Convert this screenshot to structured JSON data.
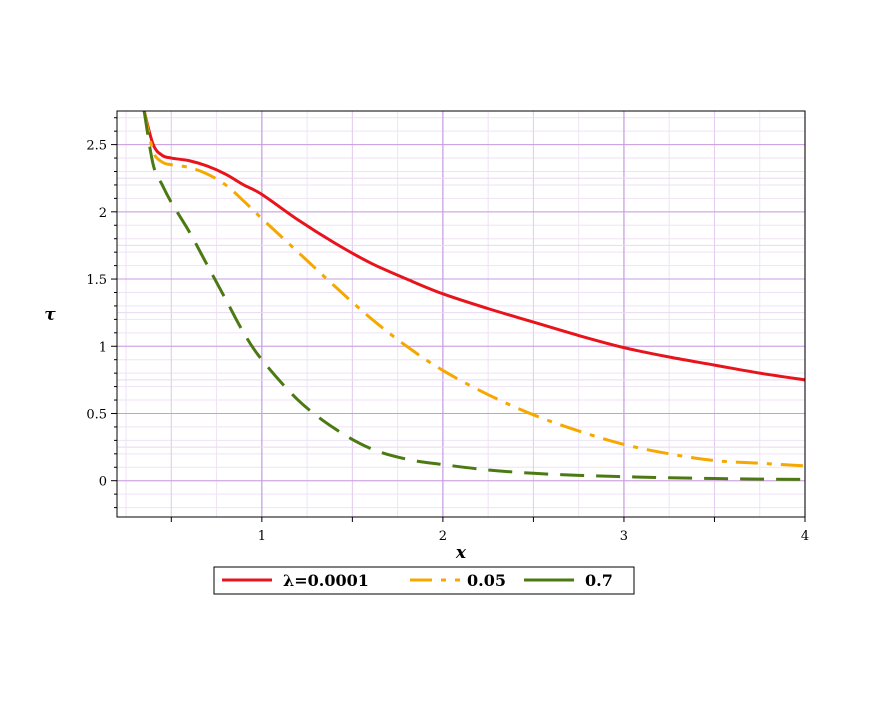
{
  "chart_data": {
    "type": "line",
    "xlabel": "x",
    "ylabel": "τ",
    "xlim": [
      0.2,
      4.0
    ],
    "ylim": [
      -0.27,
      2.75
    ],
    "x_ticks": [
      1,
      2,
      3,
      4
    ],
    "x_tick_labels": [
      "1",
      "2",
      "3",
      "4"
    ],
    "y_ticks": [
      0,
      0.5,
      1,
      1.5,
      2,
      2.5
    ],
    "y_tick_labels": [
      "0",
      "0.5",
      "1",
      "1.5",
      "2",
      "2.5"
    ],
    "grid": true,
    "legend_position": "bottom",
    "series": [
      {
        "name": "λ=0.0001",
        "color": "#e8141c",
        "dash": "solid",
        "x": [
          0.35,
          0.4,
          0.45,
          0.5,
          0.6,
          0.7,
          0.8,
          0.9,
          1.0,
          1.2,
          1.4,
          1.6,
          1.8,
          2.0,
          2.25,
          2.5,
          2.75,
          3.0,
          3.25,
          3.5,
          3.75,
          4.0
        ],
        "y": [
          2.75,
          2.5,
          2.42,
          2.4,
          2.38,
          2.34,
          2.28,
          2.2,
          2.13,
          1.94,
          1.77,
          1.62,
          1.5,
          1.39,
          1.28,
          1.18,
          1.08,
          0.99,
          0.92,
          0.86,
          0.8,
          0.75
        ]
      },
      {
        "name": "0.05",
        "color": "#f5a800",
        "dash": "dashdot",
        "x": [
          0.35,
          0.4,
          0.45,
          0.5,
          0.6,
          0.7,
          0.8,
          0.9,
          1.0,
          1.2,
          1.4,
          1.6,
          1.8,
          2.0,
          2.25,
          2.5,
          2.75,
          3.0,
          3.25,
          3.5,
          3.75,
          4.0
        ],
        "y": [
          2.75,
          2.45,
          2.37,
          2.35,
          2.33,
          2.28,
          2.2,
          2.08,
          1.95,
          1.7,
          1.45,
          1.21,
          1.0,
          0.82,
          0.64,
          0.49,
          0.37,
          0.27,
          0.2,
          0.15,
          0.13,
          0.11
        ]
      },
      {
        "name": "0.7",
        "color": "#4c7a12",
        "dash": "dashed",
        "x": [
          0.35,
          0.4,
          0.45,
          0.5,
          0.6,
          0.7,
          0.8,
          0.9,
          1.0,
          1.2,
          1.4,
          1.6,
          1.8,
          2.0,
          2.25,
          2.5,
          2.75,
          3.0,
          3.25,
          3.5,
          3.75,
          4.0
        ],
        "y": [
          2.75,
          2.35,
          2.2,
          2.07,
          1.85,
          1.6,
          1.35,
          1.1,
          0.9,
          0.6,
          0.39,
          0.24,
          0.16,
          0.12,
          0.08,
          0.055,
          0.04,
          0.03,
          0.022,
          0.016,
          0.012,
          0.01
        ]
      }
    ]
  }
}
